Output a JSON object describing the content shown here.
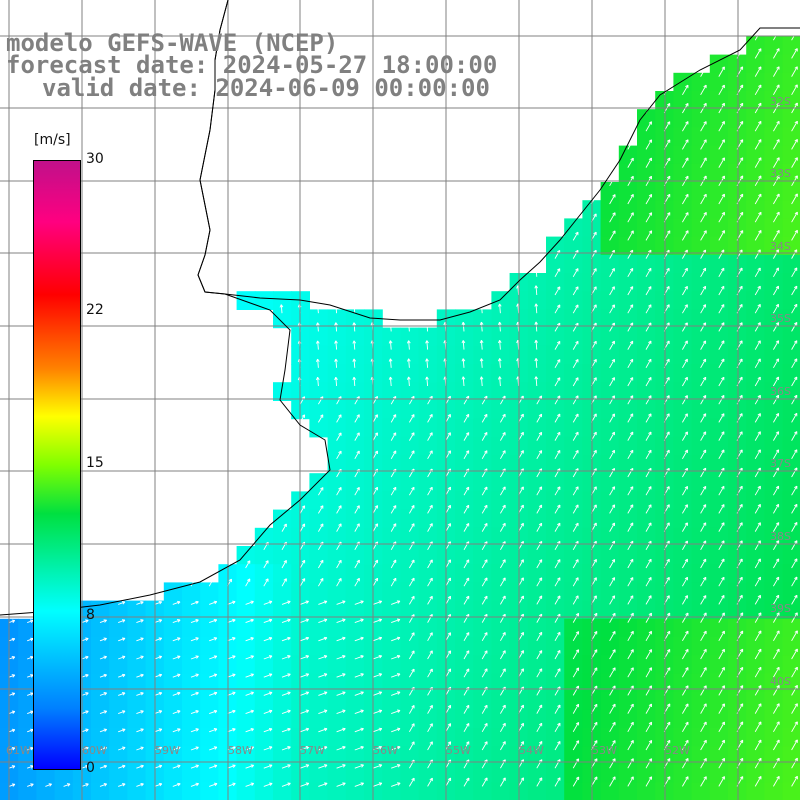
{
  "title": {
    "line1": "modelo GEFS-WAVE (NCEP)",
    "line2": "forecast date: 2024-05-27 18:00:00",
    "line3": "valid date: 2024-06-09 00:00:00"
  },
  "colorbar": {
    "units": "[m/s]",
    "ticks": [
      "30",
      "22",
      "15",
      "8",
      "0"
    ],
    "tick_values": [
      30,
      22,
      15,
      8,
      0
    ],
    "range": [
      0,
      30
    ],
    "colors": [
      "#0000ff",
      "#0080ff",
      "#00ffff",
      "#00e040",
      "#80ff00",
      "#ffff00",
      "#ff8000",
      "#ff0000",
      "#ff0080",
      "#c0108a"
    ]
  },
  "map": {
    "field": "wind speed with wind direction arrows",
    "lat_labels": [
      "32S",
      "33S",
      "34S",
      "35S",
      "36S",
      "37S",
      "38S",
      "39S",
      "40S"
    ],
    "lon_labels": [
      "61W",
      "60W",
      "59W",
      "58W",
      "57W",
      "56W",
      "55W",
      "54W",
      "53W",
      "52W"
    ],
    "grid_color": "#888888",
    "coast_color": "#000000",
    "arrow_color": "#ffffff"
  }
}
